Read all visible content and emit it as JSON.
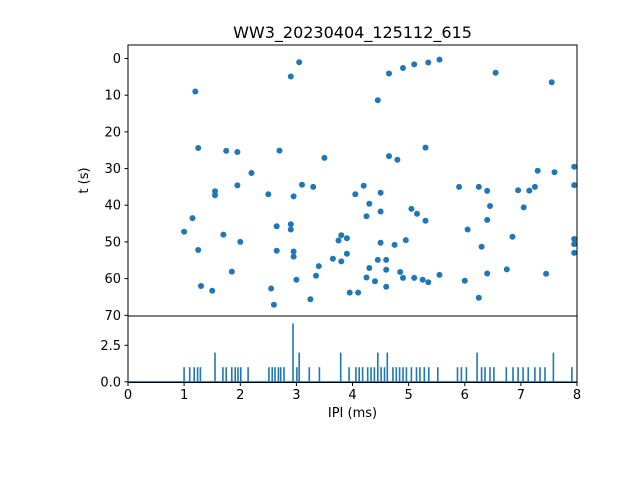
{
  "figure": {
    "title": "WW3_20230404_125112_615",
    "background": "#ffffff",
    "accent_color": "#1f77b4"
  },
  "chart_data": [
    {
      "type": "scatter",
      "title": "WW3_20230404_125112_615",
      "xlabel": "IPI (ms)",
      "ylabel": "t (s)",
      "xlim": [
        0,
        8
      ],
      "ylim": [
        -3.7,
        70
      ],
      "y_inverted": true,
      "grid": false,
      "legend": false,
      "xticks": [
        0,
        1,
        2,
        3,
        4,
        5,
        6,
        7,
        8
      ],
      "yticks": [
        0,
        10,
        20,
        30,
        40,
        50,
        60,
        70
      ],
      "marker_color": "#1f77b4",
      "points": [
        [
          3.05,
          1
        ],
        [
          5.55,
          0.3
        ],
        [
          5.35,
          1.1
        ],
        [
          5.1,
          1.6
        ],
        [
          4.9,
          2.6
        ],
        [
          6.55,
          3.9
        ],
        [
          4.65,
          4.1
        ],
        [
          2.9,
          4.9
        ],
        [
          7.55,
          6.5
        ],
        [
          1.2,
          9
        ],
        [
          4.45,
          11.4
        ],
        [
          5.3,
          24.3
        ],
        [
          1.25,
          24.4
        ],
        [
          2.7,
          25.1
        ],
        [
          1.75,
          25.2
        ],
        [
          1.95,
          25.5
        ],
        [
          4.65,
          26.6
        ],
        [
          3.5,
          27.1
        ],
        [
          4.8,
          27.6
        ],
        [
          7.95,
          29.5
        ],
        [
          7.3,
          30.6
        ],
        [
          7.6,
          31
        ],
        [
          2.2,
          31.2
        ],
        [
          3.1,
          34.4
        ],
        [
          7.95,
          34.5
        ],
        [
          1.95,
          34.6
        ],
        [
          4.2,
          34.7
        ],
        [
          7.25,
          35
        ],
        [
          3.3,
          35
        ],
        [
          5.9,
          35
        ],
        [
          6.25,
          35
        ],
        [
          6.95,
          35.9
        ],
        [
          7.15,
          36
        ],
        [
          6.4,
          36.1
        ],
        [
          1.55,
          36.2
        ],
        [
          4.5,
          36.6
        ],
        [
          2.5,
          37
        ],
        [
          4.05,
          37
        ],
        [
          1.55,
          37.3
        ],
        [
          2.95,
          37.6
        ],
        [
          4.3,
          39.6
        ],
        [
          6.45,
          40.2
        ],
        [
          7.05,
          40.6
        ],
        [
          5.05,
          41
        ],
        [
          4.5,
          41.7
        ],
        [
          5.15,
          42.3
        ],
        [
          4.25,
          43
        ],
        [
          1.15,
          43.5
        ],
        [
          6.4,
          44
        ],
        [
          5.3,
          44.2
        ],
        [
          2.9,
          45.2
        ],
        [
          2.65,
          45.7
        ],
        [
          2.9,
          46.6
        ],
        [
          6.05,
          46.6
        ],
        [
          1.0,
          47.2
        ],
        [
          1.7,
          48
        ],
        [
          3.8,
          48.2
        ],
        [
          6.85,
          48.6
        ],
        [
          3.9,
          49
        ],
        [
          7.95,
          49.2
        ],
        [
          4.95,
          49.5
        ],
        [
          3.75,
          49.6
        ],
        [
          2.0,
          50
        ],
        [
          4.5,
          50.2
        ],
        [
          7.95,
          50.6
        ],
        [
          4.75,
          50.8
        ],
        [
          6.3,
          51.3
        ],
        [
          1.25,
          52.2
        ],
        [
          2.65,
          52.4
        ],
        [
          2.95,
          52.6
        ],
        [
          7.95,
          53
        ],
        [
          3.9,
          53.2
        ],
        [
          2.95,
          54
        ],
        [
          3.65,
          54.6
        ],
        [
          4.45,
          54.9
        ],
        [
          4.6,
          54.9
        ],
        [
          3.8,
          55.3
        ],
        [
          3.4,
          56.6
        ],
        [
          4.3,
          57.1
        ],
        [
          6.75,
          57.5
        ],
        [
          4.6,
          57.6
        ],
        [
          1.85,
          58.1
        ],
        [
          4.85,
          58.2
        ],
        [
          6.4,
          58.6
        ],
        [
          7.45,
          58.7
        ],
        [
          5.55,
          59
        ],
        [
          3.35,
          59.2
        ],
        [
          4.25,
          59.7
        ],
        [
          4.9,
          59.8
        ],
        [
          5.1,
          59.8
        ],
        [
          3.0,
          60.3
        ],
        [
          5.25,
          60.3
        ],
        [
          6.0,
          60.6
        ],
        [
          4.4,
          60.7
        ],
        [
          5.35,
          61
        ],
        [
          1.3,
          62
        ],
        [
          4.6,
          62.2
        ],
        [
          2.55,
          62.7
        ],
        [
          1.5,
          63.3
        ],
        [
          3.95,
          63.8
        ],
        [
          4.1,
          63.8
        ],
        [
          6.25,
          65.2
        ],
        [
          3.25,
          65.6
        ],
        [
          2.6,
          67.1
        ]
      ]
    },
    {
      "type": "line",
      "title": "",
      "xlabel": "IPI (ms)",
      "ylabel": "",
      "xlim": [
        0,
        8
      ],
      "ylim": [
        0,
        4.5
      ],
      "grid": false,
      "legend": false,
      "xticks": [
        0,
        1,
        2,
        3,
        4,
        5,
        6,
        7,
        8
      ],
      "xtick_labels": [
        "0",
        "1",
        "2",
        "3",
        "4",
        "5",
        "6",
        "7",
        "8"
      ],
      "yticks": [
        0,
        2.5
      ],
      "ytick_labels": [
        "0.0",
        "2.5"
      ],
      "line_color": "#1f77b4",
      "baseline": 0,
      "spikes": [
        [
          1.0,
          1
        ],
        [
          1.1,
          1
        ],
        [
          1.18,
          1
        ],
        [
          1.24,
          1
        ],
        [
          1.29,
          1
        ],
        [
          1.55,
          2
        ],
        [
          1.69,
          1
        ],
        [
          1.75,
          1
        ],
        [
          1.85,
          1
        ],
        [
          1.91,
          1
        ],
        [
          1.96,
          1
        ],
        [
          2.01,
          1
        ],
        [
          2.14,
          1
        ],
        [
          2.51,
          1
        ],
        [
          2.57,
          1
        ],
        [
          2.62,
          1
        ],
        [
          2.68,
          1
        ],
        [
          2.72,
          1
        ],
        [
          2.78,
          1
        ],
        [
          2.94,
          4
        ],
        [
          3.01,
          1
        ],
        [
          3.05,
          2
        ],
        [
          3.23,
          1
        ],
        [
          3.41,
          1
        ],
        [
          3.79,
          2
        ],
        [
          3.94,
          1
        ],
        [
          4.06,
          1
        ],
        [
          4.12,
          1
        ],
        [
          4.18,
          1
        ],
        [
          4.27,
          1
        ],
        [
          4.33,
          1
        ],
        [
          4.39,
          1
        ],
        [
          4.45,
          2
        ],
        [
          4.51,
          1
        ],
        [
          4.57,
          1
        ],
        [
          4.62,
          2
        ],
        [
          4.72,
          1
        ],
        [
          4.78,
          1
        ],
        [
          4.84,
          1
        ],
        [
          4.9,
          1
        ],
        [
          4.96,
          1
        ],
        [
          5.05,
          1
        ],
        [
          5.14,
          1
        ],
        [
          5.2,
          1
        ],
        [
          5.28,
          1
        ],
        [
          5.36,
          1
        ],
        [
          5.52,
          1
        ],
        [
          5.87,
          1
        ],
        [
          5.94,
          1
        ],
        [
          6.03,
          1
        ],
        [
          6.22,
          2
        ],
        [
          6.3,
          1
        ],
        [
          6.36,
          1
        ],
        [
          6.45,
          1
        ],
        [
          6.52,
          1
        ],
        [
          6.74,
          1
        ],
        [
          6.86,
          1
        ],
        [
          6.95,
          1
        ],
        [
          7.04,
          1
        ],
        [
          7.13,
          1
        ],
        [
          7.25,
          1
        ],
        [
          7.34,
          1
        ],
        [
          7.43,
          1
        ],
        [
          7.58,
          2
        ],
        [
          7.91,
          1
        ]
      ]
    }
  ]
}
